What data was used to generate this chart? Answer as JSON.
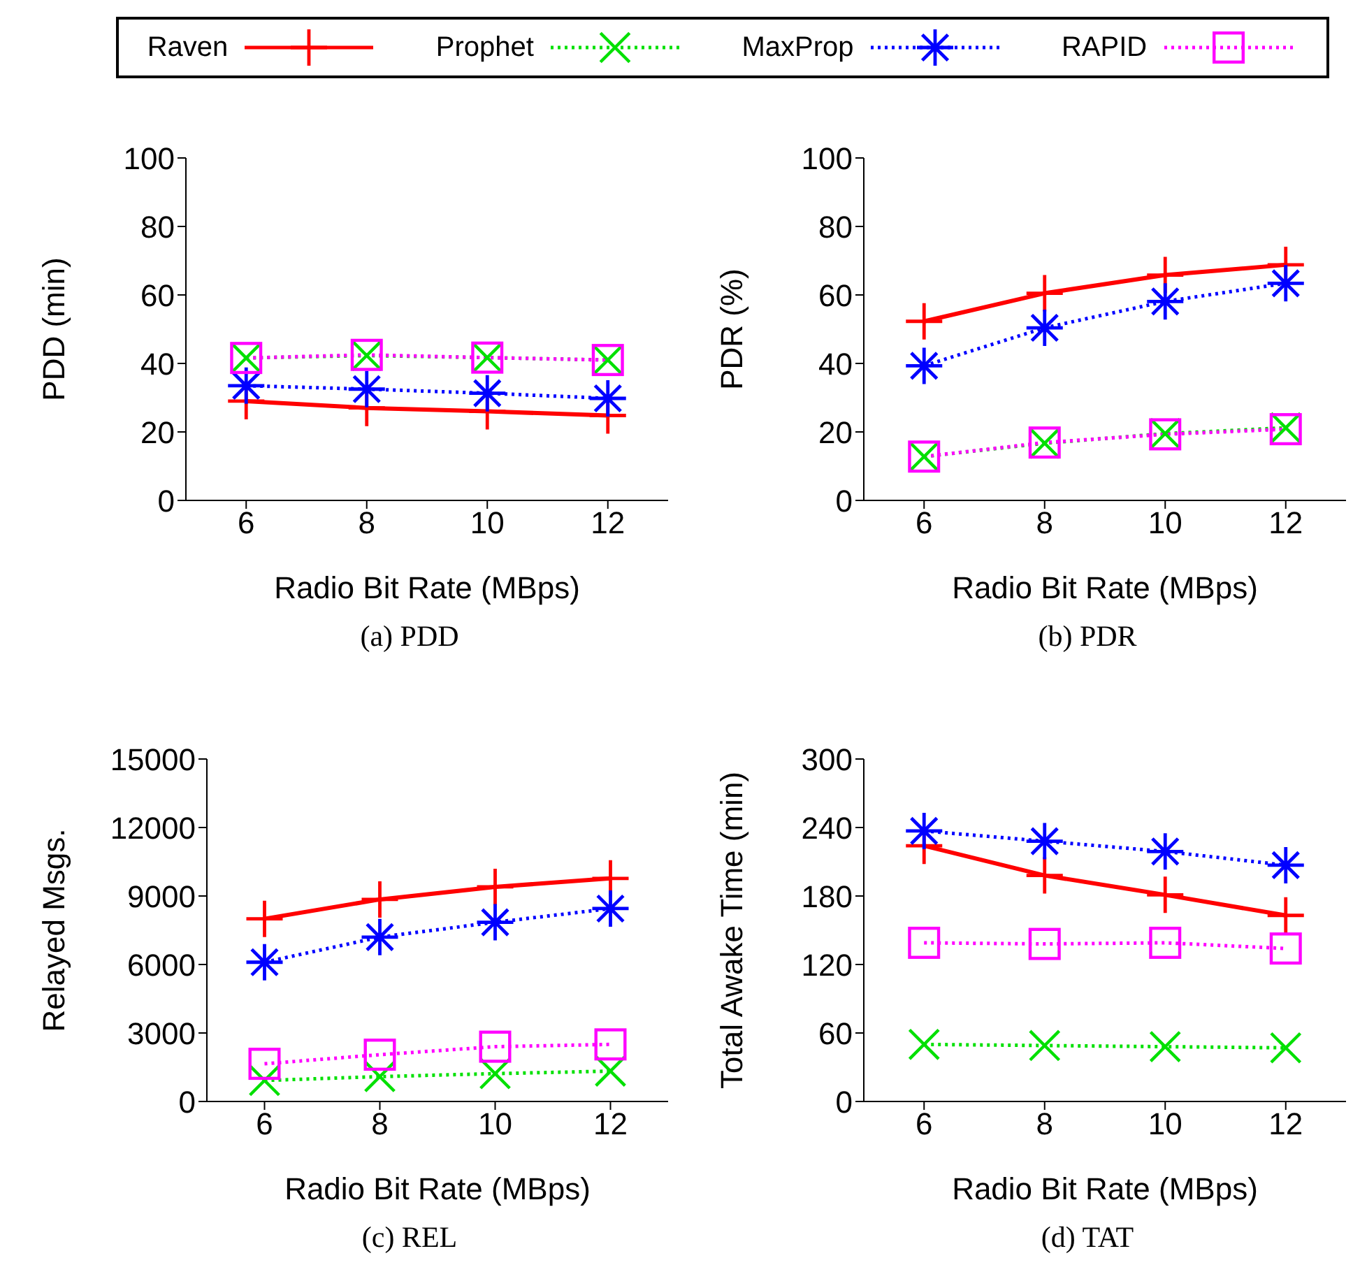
{
  "chart_data": [
    {
      "type": "line",
      "title": "(a) PDD",
      "xlabel": "Radio Bit Rate (MBps)",
      "ylabel": "PDD (min)",
      "x": [
        6,
        8,
        10,
        12
      ],
      "xlim": [
        5,
        13
      ],
      "xticks": [
        6,
        8,
        10,
        12
      ],
      "ylim": [
        0,
        100
      ],
      "yticks": [
        0,
        20,
        40,
        60,
        80,
        100
      ],
      "legend": "top",
      "series": [
        {
          "name": "Raven",
          "color": "#ff0000",
          "marker": "cross",
          "line_style": "solid",
          "values": [
            29,
            27,
            26,
            24.8
          ]
        },
        {
          "name": "Prophet",
          "color": "#00e000",
          "marker": "cross",
          "line_style": "dotted",
          "values": [
            41.6,
            42.3,
            41.7,
            41
          ]
        },
        {
          "name": "MaxProp",
          "color": "#0000ff",
          "marker": "star",
          "line_style": "dotted",
          "values": [
            33.5,
            32.5,
            31.3,
            29.8
          ]
        },
        {
          "name": "RAPID",
          "color": "#ff00ff",
          "marker": "square",
          "line_style": "dotted",
          "values": [
            41.6,
            42.5,
            41.7,
            41
          ]
        }
      ]
    },
    {
      "type": "line",
      "title": "(b) PDR",
      "xlabel": "Radio Bit Rate (MBps)",
      "ylabel": "PDR (%)",
      "x": [
        6,
        8,
        10,
        12
      ],
      "xlim": [
        5,
        13
      ],
      "xticks": [
        6,
        8,
        10,
        12
      ],
      "ylim": [
        0,
        100
      ],
      "yticks": [
        0,
        20,
        40,
        60,
        80,
        100
      ],
      "series": [
        {
          "color": "#ff0000",
          "marker": "cross",
          "line_style": "solid",
          "values": [
            52.3,
            60.5,
            65.8,
            68.8
          ]
        },
        {
          "color": "#00e000",
          "marker": "cross",
          "line_style": "dotted",
          "values": [
            12.8,
            16.7,
            19.5,
            21.2
          ]
        },
        {
          "color": "#0000ff",
          "marker": "star",
          "line_style": "dotted",
          "values": [
            39.3,
            50.4,
            58.1,
            63.4
          ]
        },
        {
          "color": "#ff00ff",
          "marker": "square",
          "line_style": "dotted",
          "values": [
            12.8,
            16.9,
            19.3,
            20.8
          ]
        }
      ]
    },
    {
      "type": "line",
      "title": "(c) REL",
      "xlabel": "Radio Bit Rate (MBps)",
      "ylabel": "Relayed Msgs.",
      "x": [
        6,
        8,
        10,
        12
      ],
      "xlim": [
        5,
        13
      ],
      "xticks": [
        6,
        8,
        10,
        12
      ],
      "ylim": [
        0,
        15000
      ],
      "yticks": [
        0,
        3000,
        6000,
        9000,
        12000,
        15000
      ],
      "series": [
        {
          "color": "#ff0000",
          "marker": "cross",
          "line_style": "solid",
          "values": [
            8000,
            8850,
            9400,
            9770
          ]
        },
        {
          "color": "#00e000",
          "marker": "cross",
          "line_style": "dotted",
          "values": [
            920,
            1090,
            1220,
            1330
          ]
        },
        {
          "color": "#0000ff",
          "marker": "star",
          "line_style": "dotted",
          "values": [
            6100,
            7200,
            7850,
            8450
          ]
        },
        {
          "color": "#ff00ff",
          "marker": "square",
          "line_style": "dotted",
          "values": [
            1650,
            2050,
            2400,
            2500
          ]
        }
      ]
    },
    {
      "type": "line",
      "title": "(d) TAT",
      "xlabel": "Radio Bit Rate (MBps)",
      "ylabel": "Total Awake Time (min)",
      "x": [
        6,
        8,
        10,
        12
      ],
      "xlim": [
        5,
        13
      ],
      "xticks": [
        6,
        8,
        10,
        12
      ],
      "ylim": [
        0,
        300
      ],
      "yticks": [
        0,
        60,
        120,
        180,
        240,
        300
      ],
      "series": [
        {
          "color": "#ff0000",
          "marker": "cross",
          "line_style": "solid",
          "values": [
            224,
            198,
            181,
            163
          ]
        },
        {
          "color": "#00e000",
          "marker": "cross",
          "line_style": "dotted",
          "values": [
            50,
            49,
            48,
            47
          ]
        },
        {
          "color": "#0000ff",
          "marker": "star",
          "line_style": "dotted",
          "values": [
            237,
            228,
            219,
            207
          ]
        },
        {
          "color": "#ff00ff",
          "marker": "square",
          "line_style": "dotted",
          "values": [
            139,
            138,
            139,
            134
          ]
        }
      ]
    }
  ]
}
